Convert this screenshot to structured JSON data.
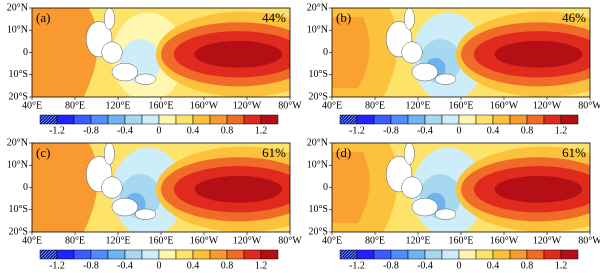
{
  "panels": [
    {
      "label": "(a)",
      "percent": "44%"
    },
    {
      "label": "(b)",
      "percent": "46%"
    },
    {
      "label": "(c)",
      "percent": "61%"
    },
    {
      "label": "(d)",
      "percent": "61%"
    }
  ],
  "lat_labels": [
    "20°N",
    "10°N",
    "0",
    "10°S",
    "20°S"
  ],
  "lon_labels": [
    "40°E",
    "80°E",
    "120°E",
    "160°E",
    "160°W",
    "120°W",
    "80°W"
  ],
  "colorbar": {
    "levels": [
      -1.2,
      -0.8,
      -0.4,
      0,
      0.4,
      0.8,
      1.2
    ],
    "colors": [
      "#0a1ea0",
      "#2323ff",
      "#3c5cff",
      "#4f8cff",
      "#6fb4f0",
      "#a6d8f0",
      "#cdeef8",
      "#fff7b0",
      "#fde36a",
      "#fcc23c",
      "#f89a30",
      "#f06a28",
      "#e02a1e",
      "#b40f14"
    ]
  }
}
